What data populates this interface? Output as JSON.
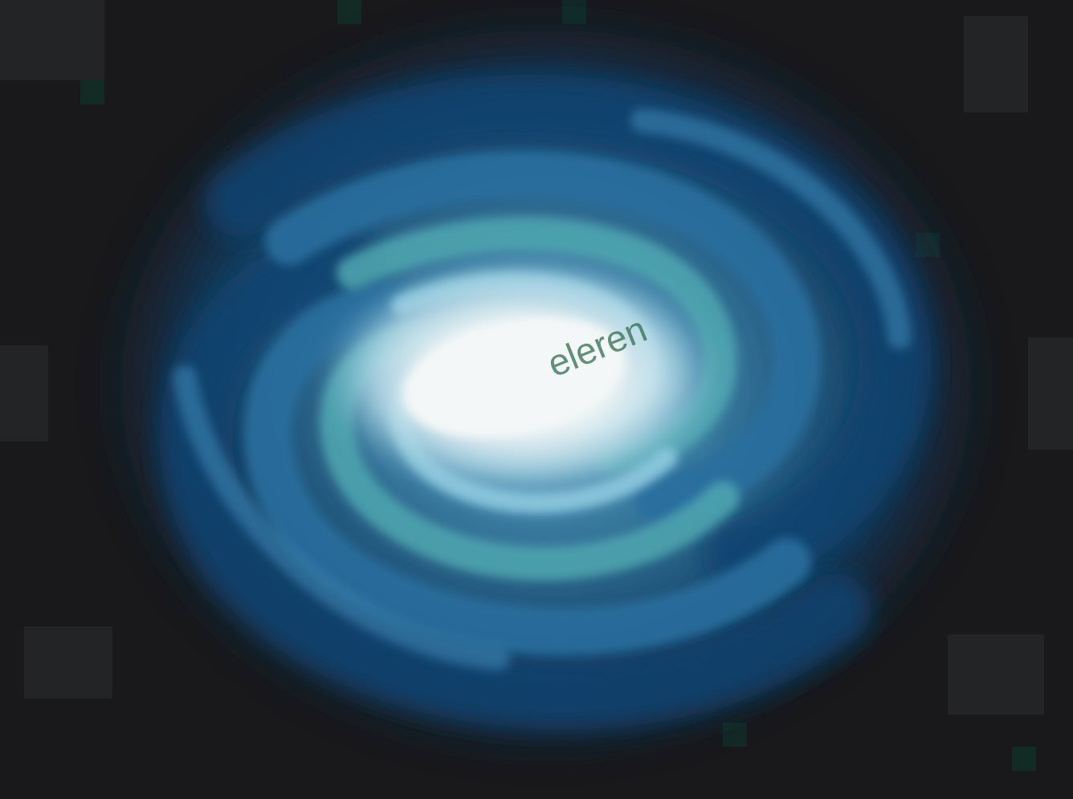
{
  "image": {
    "subject": "spiral-galaxy",
    "palette": {
      "background": "#19191b",
      "outer_arm": "#0b3a63",
      "mid_arm": "#2a6f9e",
      "teal_arm": "#4fa7b0",
      "inner_glow": "#a9d2e4",
      "core": "#f1f5f6",
      "watermark": "#2f6d4e"
    },
    "watermark_text": "eleren"
  }
}
